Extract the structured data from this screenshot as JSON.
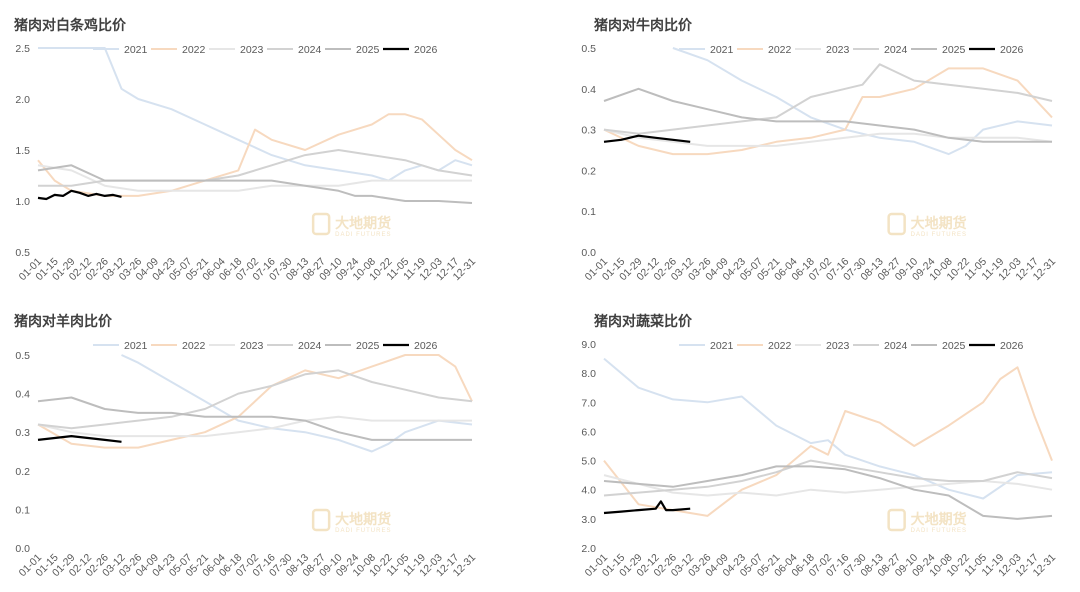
{
  "colors": {
    "2021": "#d6e2f0",
    "2022": "#f7d9bf",
    "2023": "#e6e6e6",
    "2024": "#d2d2d2",
    "2025": "#bdbdbd",
    "2026": "#000000"
  },
  "watermark": {
    "name": "大地期货",
    "sub": "DADI FUTURES"
  },
  "chart_data": [
    {
      "type": "line",
      "title": "猪肉对白条鸡比价",
      "ylim": [
        0.5,
        2.5
      ],
      "yticks": [
        "0.5",
        "1.0",
        "1.5",
        "2.0",
        "2.5"
      ],
      "xlabels": [
        "01-01",
        "01-15",
        "01-29",
        "02-12",
        "02-26",
        "03-12",
        "03-26",
        "04-09",
        "04-23",
        "05-07",
        "05-21",
        "06-04",
        "06-18",
        "07-02",
        "07-16",
        "07-30",
        "08-13",
        "08-27",
        "09-10",
        "09-24",
        "10-08",
        "10-22",
        "11-05",
        "11-19",
        "12-03",
        "12-17",
        "12-31"
      ],
      "legend": [
        "2021",
        "2022",
        "2023",
        "2024",
        "2025",
        "2026"
      ],
      "series": [
        {
          "name": "2021",
          "x": [
            0,
            4,
            5,
            6,
            8,
            10,
            12,
            14,
            16,
            18,
            20,
            21,
            22,
            23,
            24,
            25,
            26
          ],
          "values": [
            2.5,
            2.5,
            2.1,
            2.0,
            1.9,
            1.75,
            1.6,
            1.45,
            1.35,
            1.3,
            1.25,
            1.2,
            1.3,
            1.35,
            1.3,
            1.4,
            1.35
          ]
        },
        {
          "name": "2022",
          "x": [
            0,
            1,
            2,
            4,
            6,
            8,
            10,
            12,
            13,
            14,
            16,
            18,
            20,
            21,
            22,
            23,
            24,
            25,
            26
          ],
          "values": [
            1.4,
            1.2,
            1.1,
            1.05,
            1.05,
            1.1,
            1.2,
            1.3,
            1.7,
            1.6,
            1.5,
            1.65,
            1.75,
            1.85,
            1.85,
            1.8,
            1.65,
            1.5,
            1.4
          ]
        },
        {
          "name": "2023",
          "x": [
            0,
            2,
            4,
            6,
            8,
            10,
            12,
            14,
            16,
            18,
            20,
            22,
            24,
            26
          ],
          "values": [
            1.35,
            1.3,
            1.15,
            1.1,
            1.1,
            1.1,
            1.1,
            1.15,
            1.15,
            1.15,
            1.2,
            1.2,
            1.2,
            1.2
          ]
        },
        {
          "name": "2024",
          "x": [
            0,
            2,
            4,
            6,
            8,
            10,
            12,
            14,
            16,
            18,
            20,
            22,
            24,
            26
          ],
          "values": [
            1.15,
            1.15,
            1.2,
            1.2,
            1.2,
            1.2,
            1.25,
            1.35,
            1.45,
            1.5,
            1.45,
            1.4,
            1.3,
            1.25
          ]
        },
        {
          "name": "2025",
          "x": [
            0,
            2,
            4,
            6,
            8,
            10,
            12,
            14,
            16,
            18,
            19,
            20,
            22,
            24,
            26
          ],
          "values": [
            1.3,
            1.35,
            1.2,
            1.2,
            1.2,
            1.2,
            1.2,
            1.2,
            1.15,
            1.1,
            1.05,
            1.05,
            1.0,
            1.0,
            0.98
          ]
        },
        {
          "name": "2026",
          "x": [
            0,
            0.5,
            1,
            1.5,
            2,
            2.5,
            3,
            3.5,
            4,
            4.5,
            5
          ],
          "values": [
            1.03,
            1.02,
            1.06,
            1.05,
            1.1,
            1.08,
            1.05,
            1.07,
            1.05,
            1.06,
            1.04
          ]
        }
      ]
    },
    {
      "type": "line",
      "title": "猪肉对牛肉比价",
      "ylim": [
        0.0,
        0.5
      ],
      "yticks": [
        "0.0",
        "0.1",
        "0.2",
        "0.3",
        "0.4",
        "0.5"
      ],
      "xlabels": [
        "01-01",
        "01-15",
        "01-29",
        "02-12",
        "02-26",
        "03-12",
        "03-26",
        "04-09",
        "04-23",
        "05-07",
        "05-21",
        "06-04",
        "06-18",
        "07-02",
        "07-16",
        "07-30",
        "08-13",
        "08-27",
        "09-10",
        "09-24",
        "10-08",
        "10-22",
        "11-05",
        "11-19",
        "12-03",
        "12-17",
        "12-31"
      ],
      "legend": [
        "2021",
        "2022",
        "2023",
        "2024",
        "2025",
        "2026"
      ],
      "series": [
        {
          "name": "2021",
          "x": [
            4,
            6,
            8,
            10,
            12,
            14,
            16,
            18,
            20,
            21,
            22,
            24,
            26
          ],
          "values": [
            0.5,
            0.47,
            0.42,
            0.38,
            0.33,
            0.3,
            0.28,
            0.27,
            0.24,
            0.26,
            0.3,
            0.32,
            0.31
          ]
        },
        {
          "name": "2022",
          "x": [
            0,
            2,
            4,
            6,
            8,
            10,
            12,
            14,
            15,
            16,
            18,
            20,
            22,
            24,
            26
          ],
          "values": [
            0.3,
            0.26,
            0.24,
            0.24,
            0.25,
            0.27,
            0.28,
            0.3,
            0.38,
            0.38,
            0.4,
            0.45,
            0.45,
            0.42,
            0.33
          ]
        },
        {
          "name": "2023",
          "x": [
            0,
            2,
            4,
            6,
            8,
            10,
            12,
            14,
            16,
            18,
            20,
            22,
            24,
            26
          ],
          "values": [
            0.3,
            0.28,
            0.27,
            0.26,
            0.26,
            0.26,
            0.27,
            0.28,
            0.29,
            0.29,
            0.28,
            0.28,
            0.28,
            0.27
          ]
        },
        {
          "name": "2024",
          "x": [
            0,
            2,
            4,
            6,
            8,
            10,
            12,
            14,
            15,
            16,
            18,
            20,
            22,
            24,
            26
          ],
          "values": [
            0.3,
            0.29,
            0.3,
            0.31,
            0.32,
            0.33,
            0.38,
            0.4,
            0.41,
            0.46,
            0.42,
            0.41,
            0.4,
            0.39,
            0.37
          ]
        },
        {
          "name": "2025",
          "x": [
            0,
            2,
            4,
            6,
            8,
            10,
            12,
            14,
            16,
            18,
            20,
            22,
            24,
            26
          ],
          "values": [
            0.37,
            0.4,
            0.37,
            0.35,
            0.33,
            0.32,
            0.32,
            0.32,
            0.31,
            0.3,
            0.28,
            0.27,
            0.27,
            0.27
          ]
        },
        {
          "name": "2026",
          "x": [
            0,
            1,
            2,
            3,
            4,
            5
          ],
          "values": [
            0.27,
            0.275,
            0.285,
            0.28,
            0.275,
            0.27
          ]
        }
      ]
    },
    {
      "type": "line",
      "title": "猪肉对羊肉比价",
      "ylim": [
        0.0,
        0.5
      ],
      "yticks": [
        "0.0",
        "0.1",
        "0.2",
        "0.3",
        "0.4",
        "0.5"
      ],
      "xlabels": [
        "01-01",
        "01-15",
        "01-29",
        "02-12",
        "02-26",
        "03-12",
        "03-26",
        "04-09",
        "04-23",
        "05-07",
        "05-21",
        "06-04",
        "06-18",
        "07-02",
        "07-16",
        "07-30",
        "08-13",
        "08-27",
        "09-10",
        "09-24",
        "10-08",
        "10-22",
        "11-05",
        "11-19",
        "12-03",
        "12-17",
        "12-31"
      ],
      "legend": [
        "2021",
        "2022",
        "2023",
        "2024",
        "2025",
        "2026"
      ],
      "series": [
        {
          "name": "2021",
          "x": [
            5,
            6,
            8,
            10,
            12,
            14,
            16,
            18,
            20,
            21,
            22,
            24,
            26
          ],
          "values": [
            0.5,
            0.48,
            0.43,
            0.38,
            0.33,
            0.31,
            0.3,
            0.28,
            0.25,
            0.27,
            0.3,
            0.33,
            0.32
          ]
        },
        {
          "name": "2022",
          "x": [
            0,
            2,
            4,
            6,
            8,
            10,
            12,
            14,
            16,
            18,
            20,
            22,
            24,
            25,
            26
          ],
          "values": [
            0.32,
            0.27,
            0.26,
            0.26,
            0.28,
            0.3,
            0.34,
            0.42,
            0.46,
            0.44,
            0.47,
            0.5,
            0.5,
            0.47,
            0.38
          ]
        },
        {
          "name": "2023",
          "x": [
            0,
            2,
            4,
            6,
            8,
            10,
            12,
            14,
            16,
            18,
            20,
            22,
            24,
            26
          ],
          "values": [
            0.32,
            0.3,
            0.29,
            0.29,
            0.29,
            0.29,
            0.3,
            0.31,
            0.33,
            0.34,
            0.33,
            0.33,
            0.33,
            0.33
          ]
        },
        {
          "name": "2024",
          "x": [
            0,
            2,
            4,
            6,
            8,
            10,
            12,
            14,
            16,
            18,
            20,
            22,
            24,
            26
          ],
          "values": [
            0.32,
            0.31,
            0.32,
            0.33,
            0.34,
            0.36,
            0.4,
            0.42,
            0.45,
            0.46,
            0.43,
            0.41,
            0.39,
            0.38
          ]
        },
        {
          "name": "2025",
          "x": [
            0,
            2,
            4,
            6,
            8,
            10,
            12,
            14,
            16,
            18,
            20,
            22,
            24,
            26
          ],
          "values": [
            0.38,
            0.39,
            0.36,
            0.35,
            0.35,
            0.34,
            0.34,
            0.34,
            0.33,
            0.3,
            0.28,
            0.28,
            0.28,
            0.28
          ]
        },
        {
          "name": "2026",
          "x": [
            0,
            1,
            2,
            3,
            4,
            5
          ],
          "values": [
            0.28,
            0.285,
            0.29,
            0.285,
            0.28,
            0.275
          ]
        }
      ]
    },
    {
      "type": "line",
      "title": "猪肉对蔬菜比价",
      "ylim": [
        2.0,
        9.0
      ],
      "yticks": [
        "2.0",
        "3.0",
        "4.0",
        "5.0",
        "6.0",
        "7.0",
        "8.0",
        "9.0"
      ],
      "xlabels": [
        "01-01",
        "01-15",
        "01-29",
        "02-12",
        "02-26",
        "03-12",
        "03-26",
        "04-09",
        "04-23",
        "05-07",
        "05-21",
        "06-04",
        "06-18",
        "07-02",
        "07-16",
        "07-30",
        "08-13",
        "08-27",
        "09-10",
        "09-24",
        "10-08",
        "10-22",
        "11-05",
        "11-19",
        "12-03",
        "12-17",
        "12-31"
      ],
      "legend": [
        "2021",
        "2022",
        "2023",
        "2024",
        "2025",
        "2026"
      ],
      "series": [
        {
          "name": "2021",
          "x": [
            0,
            2,
            4,
            6,
            8,
            10,
            12,
            13,
            14,
            16,
            18,
            20,
            22,
            24,
            26
          ],
          "values": [
            8.5,
            7.5,
            7.1,
            7.0,
            7.2,
            6.2,
            5.6,
            5.7,
            5.2,
            4.8,
            4.5,
            4.0,
            3.7,
            4.5,
            4.6
          ]
        },
        {
          "name": "2022",
          "x": [
            0,
            2,
            4,
            6,
            8,
            10,
            12,
            13,
            14,
            16,
            18,
            20,
            22,
            23,
            24,
            25,
            26
          ],
          "values": [
            5.0,
            3.5,
            3.3,
            3.1,
            4.0,
            4.5,
            5.5,
            5.2,
            6.7,
            6.3,
            5.5,
            6.2,
            7.0,
            7.8,
            8.2,
            6.5,
            5.0
          ]
        },
        {
          "name": "2023",
          "x": [
            0,
            2,
            4,
            6,
            8,
            10,
            12,
            14,
            16,
            18,
            20,
            22,
            24,
            26
          ],
          "values": [
            4.5,
            4.2,
            3.9,
            3.8,
            3.9,
            3.8,
            4.0,
            3.9,
            4.0,
            4.1,
            4.2,
            4.3,
            4.2,
            4.0
          ]
        },
        {
          "name": "2024",
          "x": [
            0,
            2,
            4,
            6,
            8,
            10,
            12,
            14,
            16,
            18,
            20,
            22,
            24,
            26
          ],
          "values": [
            3.8,
            3.9,
            4.0,
            4.1,
            4.3,
            4.6,
            5.0,
            4.8,
            4.6,
            4.4,
            4.3,
            4.3,
            4.6,
            4.4
          ]
        },
        {
          "name": "2025",
          "x": [
            0,
            2,
            4,
            6,
            8,
            10,
            12,
            14,
            16,
            18,
            20,
            22,
            24,
            26
          ],
          "values": [
            4.3,
            4.2,
            4.1,
            4.3,
            4.5,
            4.8,
            4.8,
            4.7,
            4.4,
            4.0,
            3.8,
            3.1,
            3.0,
            3.1
          ]
        },
        {
          "name": "2026",
          "x": [
            0,
            1,
            2,
            3,
            3.3,
            3.6,
            4,
            5
          ],
          "values": [
            3.2,
            3.25,
            3.3,
            3.35,
            3.6,
            3.3,
            3.3,
            3.35
          ]
        }
      ]
    }
  ]
}
